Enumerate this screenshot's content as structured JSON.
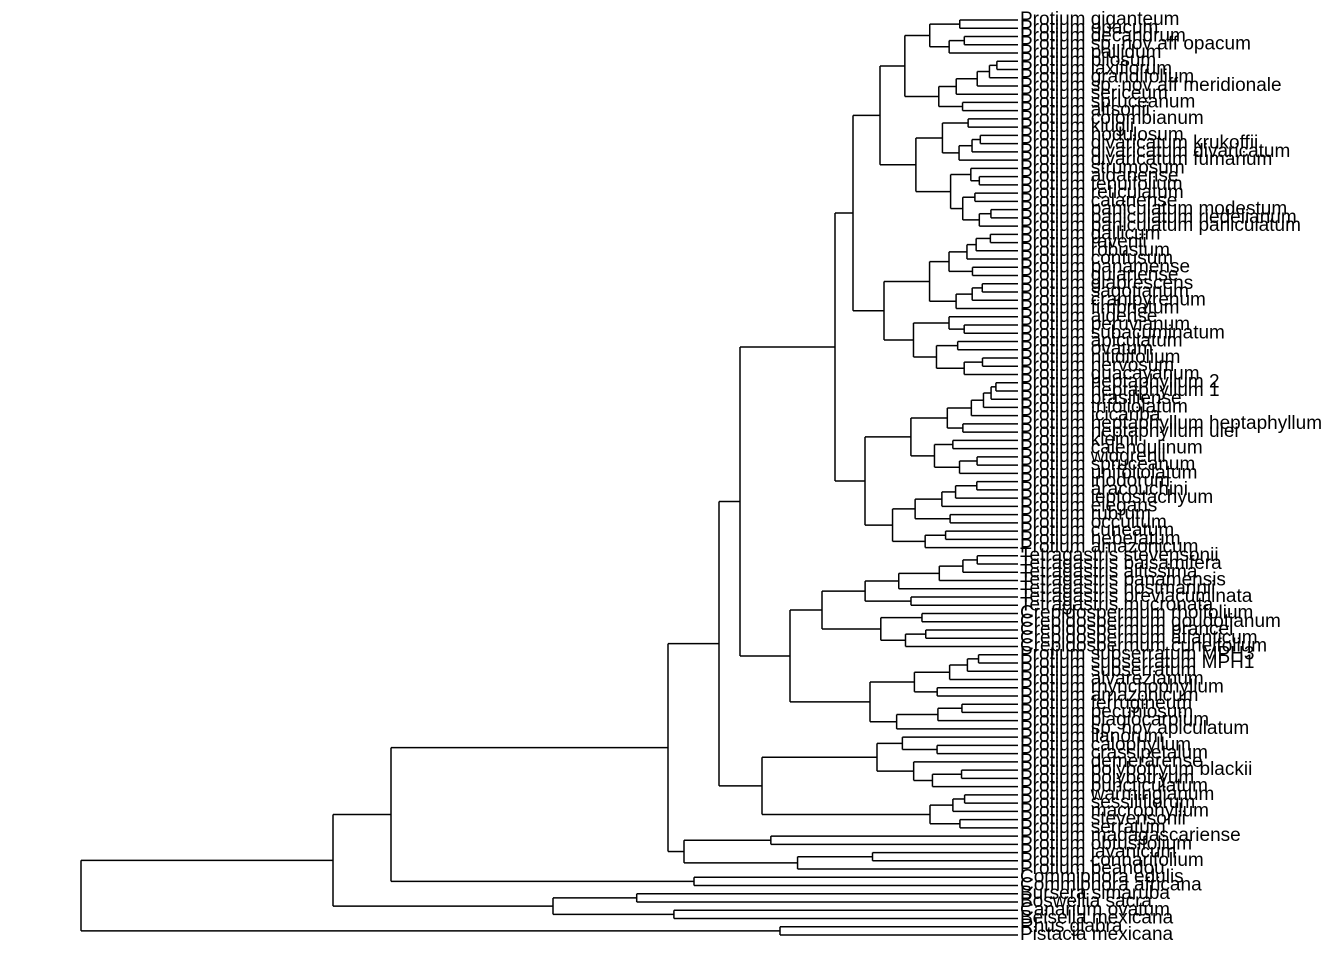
{
  "tips": [
    "Protium giganteum",
    "Protium opacum",
    "Protium decandrum",
    "Protium sp. nov aff opacum",
    "Protium pallidum",
    "Protium pilosum",
    "Protium laxiflorum",
    "Protium grandifolium",
    "Protium sp. nov aff meridionale",
    "Protium sericeum",
    "Protium spruceanum",
    "Protium altsonii",
    "Protium colombianum",
    "Protium klugii",
    "Protium nodulosum",
    "Protium divaricatum krukoffii",
    "Protium divaricatum divaricatum",
    "Protium divaricatum fumarium",
    "Protium strumosum",
    "Protium aidanense",
    "Protium tenuifolium",
    "Protium reticulatum",
    "Protium calanense",
    "Protium paniculatum modestum",
    "Protium paniculatum riedelianum",
    "Protium paniculatum paniculatum",
    "Protium gallicum",
    "Protium ravenii",
    "Protium robustum",
    "Protium confusum",
    "Protium panamense",
    "Protium guianense",
    "Protium glabrescens",
    "Protium sagotianum",
    "Protium cranipyrenum",
    "Protium fimbriatum",
    "Protium aidense",
    "Protium peruvianum",
    "Protium subacuminatum",
    "Protium apiculatum",
    "Protium ovatum",
    "Protium nitidifolium",
    "Protium nervosum",
    "Protium guacayanum",
    "Protium heptaphyllum 2",
    "Protium heptaphyllum 1",
    "Protium brasiliense",
    "Protium trifoliolatum",
    "Protium icicariba",
    "Protium heptaphyllum heptaphyllum",
    "Protium heptaphyllum ulei",
    "Protium kleinii",
    "Protium calendulinum",
    "Protium widgrenii",
    "Protium spruceanum",
    "Protium unifoliolatum",
    "Protium inodorum",
    "Protium aracouchini",
    "Protium leptostachyum",
    "Protium elegans",
    "Protium rubrum",
    "Protium occultum",
    "Protium cuneatum",
    "Protium hebetatum",
    "Protium amazonicum",
    "Tetragastris stevensonii",
    "Tetragastris balsamifera",
    "Tetragastris altissima",
    "Tetragastris panamensis",
    "Tetragastris hostmannii",
    "Tetragastris breviacuminata",
    "Tetragastris mucronata",
    "Crepidospermum rhoifolium",
    "Crepidospermum goudotianum",
    "Crepidospermum prancei",
    "Crepidospermum atlanticum",
    "Crepidospermum cuneifolium",
    "Protium subserratum MPH3",
    "Protium subserratum MPH1",
    "Protium subserratum",
    "Protium alvarezianum",
    "Protium rhynchophyllum",
    "Protium amazonicum",
    "Protium ferrugineum",
    "Protium pecuniosum",
    "Protium plagiocarpium",
    "Protium sp. nov apiculatum",
    "Protium llanorum",
    "Protium calophyllum",
    "Protium crassipetalum",
    "Protium demerarense",
    "Protium polybotryum blackii",
    "Protium polybotryum",
    "Protium puncticulatum",
    "Protium warmingianum",
    "Protium sessiliflorum",
    "Protium macrophyllum",
    "Protium stevensonii",
    "Protium serratum",
    "Protium madagascariense",
    "Protium obtusifolium",
    "Protium javanicum",
    "Protium connarifolium",
    "Protium beandou",
    "Commiphora edulis",
    "Commiphora africana",
    "Bursera simaruba",
    "Boswellia sacra",
    "Canarium ovatum",
    "Beiselia mexicana",
    "Rhus glabra",
    "Pistacia mexicana"
  ]
}
